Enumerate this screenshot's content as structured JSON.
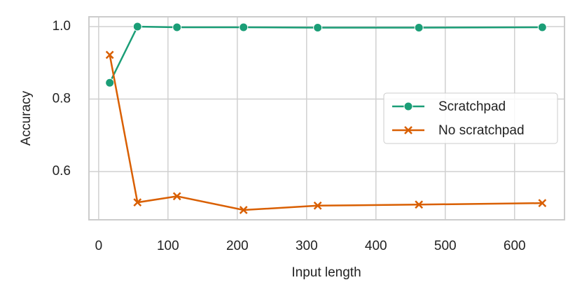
{
  "chart_data": {
    "type": "line",
    "xlabel": "Input length",
    "ylabel": "Accuracy",
    "x": [
      16,
      56,
      113,
      209,
      316,
      462,
      640
    ],
    "series": [
      {
        "name": "Scratchpad",
        "color": "#1b9e77",
        "marker": "o",
        "values": [
          0.845,
          1.0,
          0.998,
          0.998,
          0.997,
          0.997,
          0.998
        ]
      },
      {
        "name": "No scratchpad",
        "color": "#d95f02",
        "marker": "x",
        "values": [
          0.922,
          0.515,
          0.532,
          0.494,
          0.506,
          0.509,
          0.513
        ]
      }
    ],
    "xlim": [
      -14,
      672
    ],
    "ylim": [
      0.467,
      1.027
    ],
    "xticks": [
      0,
      100,
      200,
      300,
      400,
      500,
      600
    ],
    "yticks": [
      {
        "value": 0.6,
        "label": "0.6"
      },
      {
        "value": 0.8,
        "label": "0.8"
      },
      {
        "value": 1.0,
        "label": "1.0"
      }
    ],
    "grid": true,
    "legend": "center right"
  }
}
